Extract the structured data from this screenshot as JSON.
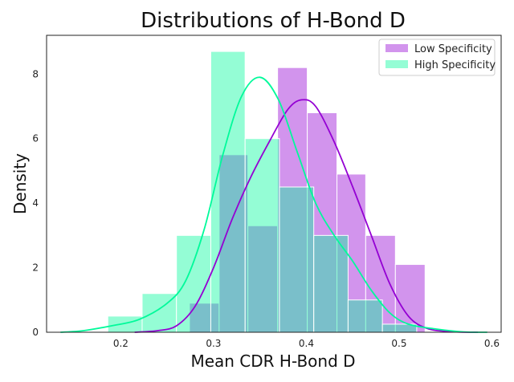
{
  "chart_data": {
    "type": "histogram",
    "title": "Distributions of H-Bond D",
    "xlabel": "Mean CDR H-Bond D",
    "ylabel": "Density",
    "xlim": [
      0.12,
      0.61
    ],
    "ylim": [
      0,
      9.2
    ],
    "xticks": [
      "0.2",
      "0.3",
      "0.4",
      "0.5",
      "0.6"
    ],
    "xtick_values": [
      0.2,
      0.3,
      0.4,
      0.5,
      0.6
    ],
    "yticks": [
      "0",
      "2",
      "4",
      "6",
      "8"
    ],
    "ytick_values": [
      0,
      2,
      4,
      6,
      8
    ],
    "grid": false,
    "legend_position": "top-right",
    "series": [
      {
        "name": "Low Specificity",
        "color": "#9400D3",
        "bins": [
          {
            "x0": 0.274,
            "x1": 0.306,
            "density": 0.9
          },
          {
            "x0": 0.306,
            "x1": 0.337,
            "density": 5.5
          },
          {
            "x0": 0.337,
            "x1": 0.369,
            "density": 3.3
          },
          {
            "x0": 0.369,
            "x1": 0.401,
            "density": 8.2
          },
          {
            "x0": 0.401,
            "x1": 0.433,
            "density": 6.8
          },
          {
            "x0": 0.433,
            "x1": 0.464,
            "density": 4.9
          },
          {
            "x0": 0.464,
            "x1": 0.496,
            "density": 3.0
          },
          {
            "x0": 0.496,
            "x1": 0.528,
            "density": 2.1
          }
        ],
        "kde": [
          [
            0.215,
            0.0
          ],
          [
            0.24,
            0.05
          ],
          [
            0.26,
            0.2
          ],
          [
            0.28,
            0.8
          ],
          [
            0.3,
            2.0
          ],
          [
            0.32,
            3.5
          ],
          [
            0.34,
            4.8
          ],
          [
            0.36,
            5.9
          ],
          [
            0.38,
            6.9
          ],
          [
            0.395,
            7.2
          ],
          [
            0.41,
            7.0
          ],
          [
            0.43,
            5.9
          ],
          [
            0.45,
            4.5
          ],
          [
            0.47,
            3.0
          ],
          [
            0.49,
            1.5
          ],
          [
            0.51,
            0.5
          ],
          [
            0.53,
            0.12
          ],
          [
            0.555,
            0.02
          ],
          [
            0.585,
            0.0
          ]
        ]
      },
      {
        "name": "High Specificity",
        "color": "#00FA9A",
        "bins": [
          {
            "x0": 0.186,
            "x1": 0.223,
            "density": 0.5
          },
          {
            "x0": 0.223,
            "x1": 0.26,
            "density": 1.2
          },
          {
            "x0": 0.26,
            "x1": 0.297,
            "density": 3.0
          },
          {
            "x0": 0.297,
            "x1": 0.334,
            "density": 8.7
          },
          {
            "x0": 0.334,
            "x1": 0.371,
            "density": 6.0
          },
          {
            "x0": 0.371,
            "x1": 0.408,
            "density": 4.5
          },
          {
            "x0": 0.408,
            "x1": 0.445,
            "density": 3.0
          },
          {
            "x0": 0.445,
            "x1": 0.482,
            "density": 1.0
          },
          {
            "x0": 0.482,
            "x1": 0.519,
            "density": 0.25
          }
        ],
        "kde": [
          [
            0.135,
            0.0
          ],
          [
            0.16,
            0.05
          ],
          [
            0.19,
            0.2
          ],
          [
            0.22,
            0.4
          ],
          [
            0.25,
            0.9
          ],
          [
            0.27,
            1.6
          ],
          [
            0.29,
            3.2
          ],
          [
            0.31,
            5.5
          ],
          [
            0.33,
            7.3
          ],
          [
            0.35,
            7.9
          ],
          [
            0.37,
            7.2
          ],
          [
            0.39,
            5.6
          ],
          [
            0.41,
            4.0
          ],
          [
            0.43,
            3.0
          ],
          [
            0.45,
            2.2
          ],
          [
            0.47,
            1.3
          ],
          [
            0.49,
            0.6
          ],
          [
            0.51,
            0.25
          ],
          [
            0.54,
            0.1
          ],
          [
            0.57,
            0.01
          ],
          [
            0.595,
            0.0
          ]
        ]
      }
    ]
  }
}
